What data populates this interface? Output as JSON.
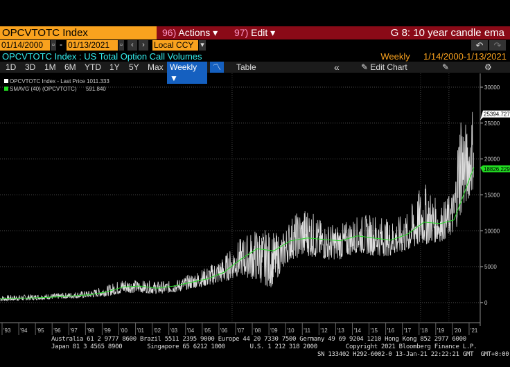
{
  "header": {
    "ticker": "OPCVTOTC Index",
    "actions_num": "96)",
    "actions": "Actions ▾",
    "edit_num": "97)",
    "edit": "Edit ▾",
    "graph_title": "G 8: 10 year candle ema"
  },
  "range": {
    "start": "01/14/2000",
    "dash": "-",
    "end": "01/13/2021",
    "currency": "Local CCY",
    "undo": "↶",
    "redo": "↷",
    "prev": "‹",
    "next": "›"
  },
  "subtitle": {
    "left": "OPCVTOTC Index : US Total Option Call Volumes",
    "freq": "Weekly",
    "period": "1/14/2000-1/13/2021"
  },
  "toolbar": {
    "buttons": [
      "1D",
      "3D",
      "1M",
      "6M",
      "YTD",
      "1Y",
      "5Y",
      "Max"
    ],
    "weekly": "Weekly ▼",
    "table": "Table",
    "collapse": "«",
    "edit_chart": "✎ Edit Chart",
    "notes": "✎",
    "settings": "⚙"
  },
  "legend": [
    {
      "label": "OPCVTOTC Index - Last Price",
      "value": "1011.333",
      "color": "#ffffff"
    },
    {
      "label": "SMAVG (40) (OPCVTOTC)",
      "value": "591.840",
      "color": "#22dd22"
    }
  ],
  "footer": {
    "line1": "Australia 61 2 9777 8600 Brazil 5511 2395 9000 Europe 44 20 7330 7500 Germany 49 69 9204 1210 Hong Kong 852 2977 6000",
    "line2": "Japan 81 3 4565 8900       Singapore 65 6212 1000       U.S. 1 212 318 2000        Copyright 2021 Bloomberg Finance L.P.",
    "line3": "SN 133402 H292-6002-0 13-Jan-21 22:22:21 GMT  GMT+0:00"
  },
  "chart_data": {
    "type": "line",
    "title": "OPCVTOTC Index : US Total Option Call Volumes",
    "ylim": [
      -3000,
      31000
    ],
    "yticks": [
      0,
      5000,
      10000,
      15000,
      20000,
      25000,
      30000
    ],
    "xticks": [
      "'93",
      "'94",
      "'95",
      "'96",
      "'97",
      "'98",
      "'99",
      "'00",
      "'01",
      "'02",
      "'03",
      "'04",
      "'05",
      "'06",
      "'07",
      "'08",
      "'09",
      "'10",
      "'11",
      "'12",
      "'13",
      "'14",
      "'15",
      "'16",
      "'17",
      "'18",
      "'19",
      "'20",
      "'21"
    ],
    "xlim": [
      1992.6,
      2021.5
    ],
    "last_labels": {
      "price": "25394.727",
      "sma": "18826.229"
    },
    "price_envelope": {
      "x": [
        1992.6,
        1994,
        1995,
        1996,
        1997,
        1998,
        1999,
        2000,
        2001,
        2002,
        2003,
        2004,
        2005,
        2006,
        2007,
        2008,
        2008.8,
        2009.5,
        2010,
        2011,
        2012,
        2013,
        2014,
        2015,
        2016,
        2017,
        2018,
        2019,
        2019.8,
        2020.2,
        2020.6,
        2021.0
      ],
      "low": [
        200,
        300,
        400,
        500,
        600,
        700,
        900,
        1300,
        1400,
        1200,
        1400,
        1900,
        2300,
        2800,
        3800,
        3000,
        2000,
        4500,
        6000,
        6500,
        6000,
        6000,
        7000,
        6500,
        6500,
        7000,
        8000,
        8500,
        9500,
        12000,
        14000,
        16000
      ],
      "high": [
        1000,
        1100,
        1200,
        1300,
        1500,
        1700,
        2400,
        3400,
        3100,
        3000,
        3000,
        4000,
        5000,
        6500,
        9000,
        10500,
        10000,
        9500,
        12000,
        13500,
        11000,
        11000,
        12000,
        12500,
        11500,
        12500,
        17000,
        13500,
        16000,
        29000,
        24000,
        29000
      ]
    },
    "sma": {
      "x": [
        1992.6,
        1994,
        1996,
        1998,
        1999,
        2000,
        2001,
        2002,
        2003,
        2004,
        2005,
        2006,
        2007,
        2008,
        2009,
        2010,
        2011,
        2012,
        2013,
        2014,
        2015,
        2016,
        2017,
        2018,
        2019,
        2019.8,
        2020.3,
        2020.7,
        2021.0
      ],
      "y": [
        500,
        600,
        800,
        1100,
        1500,
        2200,
        2300,
        2000,
        2300,
        2800,
        3300,
        4200,
        6000,
        7500,
        7200,
        8600,
        9000,
        8800,
        8600,
        9300,
        9000,
        8700,
        9500,
        11200,
        11000,
        11500,
        14500,
        17000,
        18826
      ]
    }
  }
}
